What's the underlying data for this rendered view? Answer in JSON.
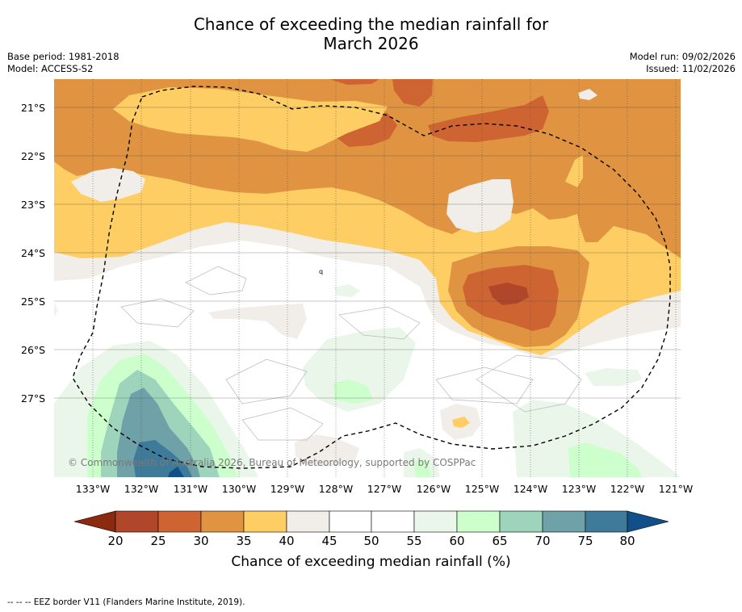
{
  "title": {
    "line1": "Chance of exceeding the median rainfall for",
    "line2": "March 2026"
  },
  "meta": {
    "base_period": "Base period: 1981-2018",
    "model": "Model: ACCESS-S2",
    "model_run": "Model run: 09/02/2026",
    "issued": "Issued: 11/02/2026"
  },
  "map": {
    "copyright": "© Commonwealth of Australia 2026, Bureau of Meteorology, supported by COSPPac",
    "lat_labels": [
      "21°S",
      "22°S",
      "23°S",
      "24°S",
      "25°S",
      "26°S",
      "27°S"
    ],
    "lon_labels": [
      "133°W",
      "132°W",
      "131°W",
      "130°W",
      "129°W",
      "128°W",
      "127°W",
      "126°W",
      "125°W",
      "124°W",
      "123°W",
      "122°W",
      "121°W"
    ],
    "point_marker": "q"
  },
  "colorbar": {
    "ticks": [
      "20",
      "25",
      "30",
      "35",
      "40",
      "45",
      "50",
      "55",
      "60",
      "65",
      "70",
      "75",
      "80"
    ],
    "label": "Chance of exceeding median rainfall (%)",
    "colors": [
      "#8b2a0e",
      "#b0462a",
      "#cf6433",
      "#e09441",
      "#fecd64",
      "#f1ede8",
      "#ffffff",
      "#ffffff",
      "#eaf6ea",
      "#ccffcc",
      "#9dd4bb",
      "#6ea2a8",
      "#3e7a99",
      "#114f8b"
    ]
  },
  "footnote": "--  --  -- EEZ border V11 (Flanders Marine Institute, 2019)."
}
